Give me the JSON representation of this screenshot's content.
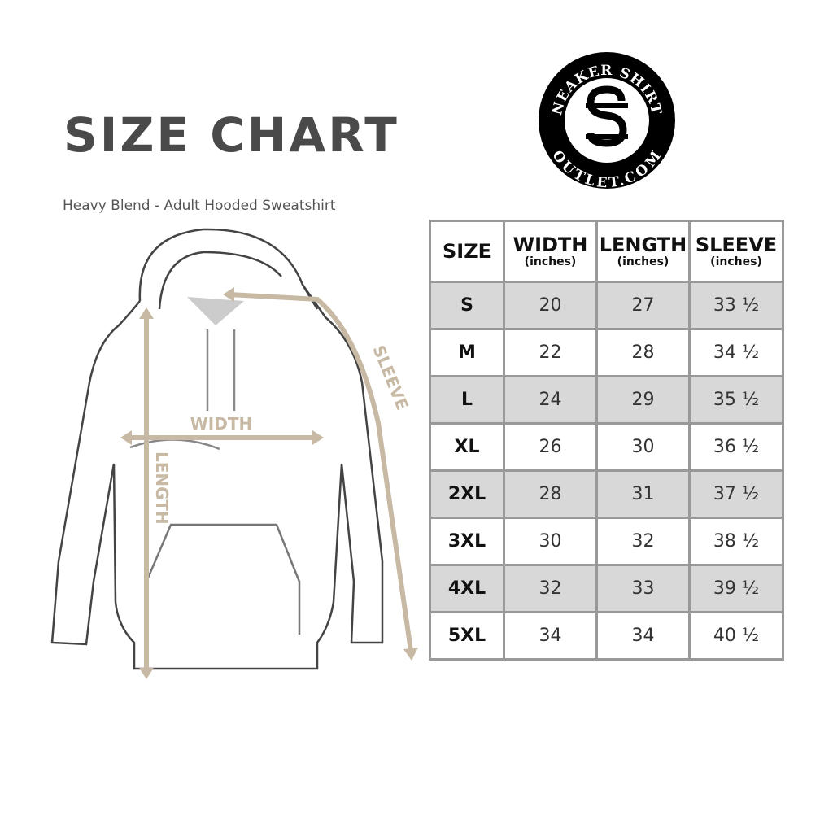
{
  "title": "SIZE CHART",
  "subtitle": "Heavy Blend - Adult Hooded Sweatshirt",
  "logo": {
    "top_text": "SNEAKER SHIRTS",
    "bottom_text": "OUTLET.COM",
    "monogram": "SS"
  },
  "diagram": {
    "width_label": "WIDTH",
    "length_label": "LENGTH",
    "sleeve_label": "SLEEVE",
    "accent_color": "#c7b9a3"
  },
  "table": {
    "headers": [
      {
        "main": "SIZE",
        "unit": ""
      },
      {
        "main": "WIDTH",
        "unit": "(inches)"
      },
      {
        "main": "LENGTH",
        "unit": "(inches)"
      },
      {
        "main": "SLEEVE",
        "unit": "(inches)"
      }
    ],
    "rows": [
      [
        "S",
        "20",
        "27",
        "33 ½"
      ],
      [
        "M",
        "22",
        "28",
        "34 ½"
      ],
      [
        "L",
        "24",
        "29",
        "35 ½"
      ],
      [
        "XL",
        "26",
        "30",
        "36 ½"
      ],
      [
        "2XL",
        "28",
        "31",
        "37 ½"
      ],
      [
        "3XL",
        "30",
        "32",
        "38 ½"
      ],
      [
        "4XL",
        "32",
        "33",
        "39 ½"
      ],
      [
        "5XL",
        "34",
        "34",
        "40 ½"
      ]
    ]
  }
}
